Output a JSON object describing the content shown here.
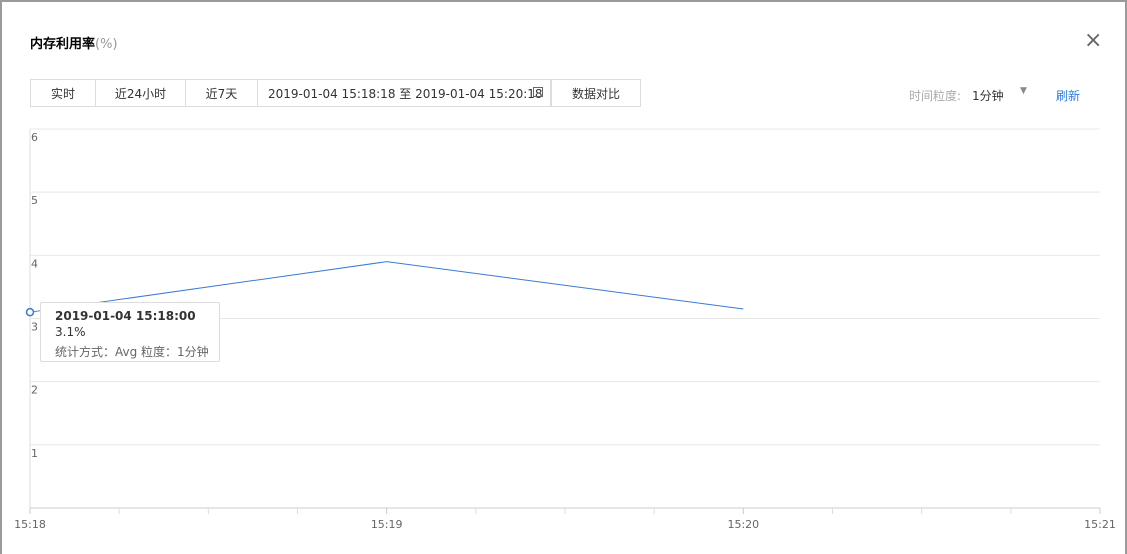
{
  "header": {
    "title": "内存利用率",
    "unit": "(%)"
  },
  "toolbar": {
    "tabs": [
      "实时",
      "近24小时",
      "近7天"
    ],
    "date_range": "2019-01-04 15:18:18 至 2019-01-04 15:20:18",
    "compare": "数据对比",
    "granularity_label": "时间粒度:",
    "granularity_value": "1分钟",
    "refresh": "刷新"
  },
  "chart_data": {
    "type": "line",
    "categories": [
      "15:18",
      "15:19",
      "15:20",
      "15:21"
    ],
    "values": [
      3.1,
      3.9,
      3.15,
      null
    ],
    "color": "#3a7bd5",
    "ylim": [
      0,
      6
    ],
    "yticks": [
      1,
      2,
      3,
      4,
      5,
      6
    ],
    "grid": true
  },
  "tooltip": {
    "time": "2019-01-04 15:18:00",
    "value": "3.1%",
    "detail": "统计方式：Avg 粒度：1分钟"
  }
}
